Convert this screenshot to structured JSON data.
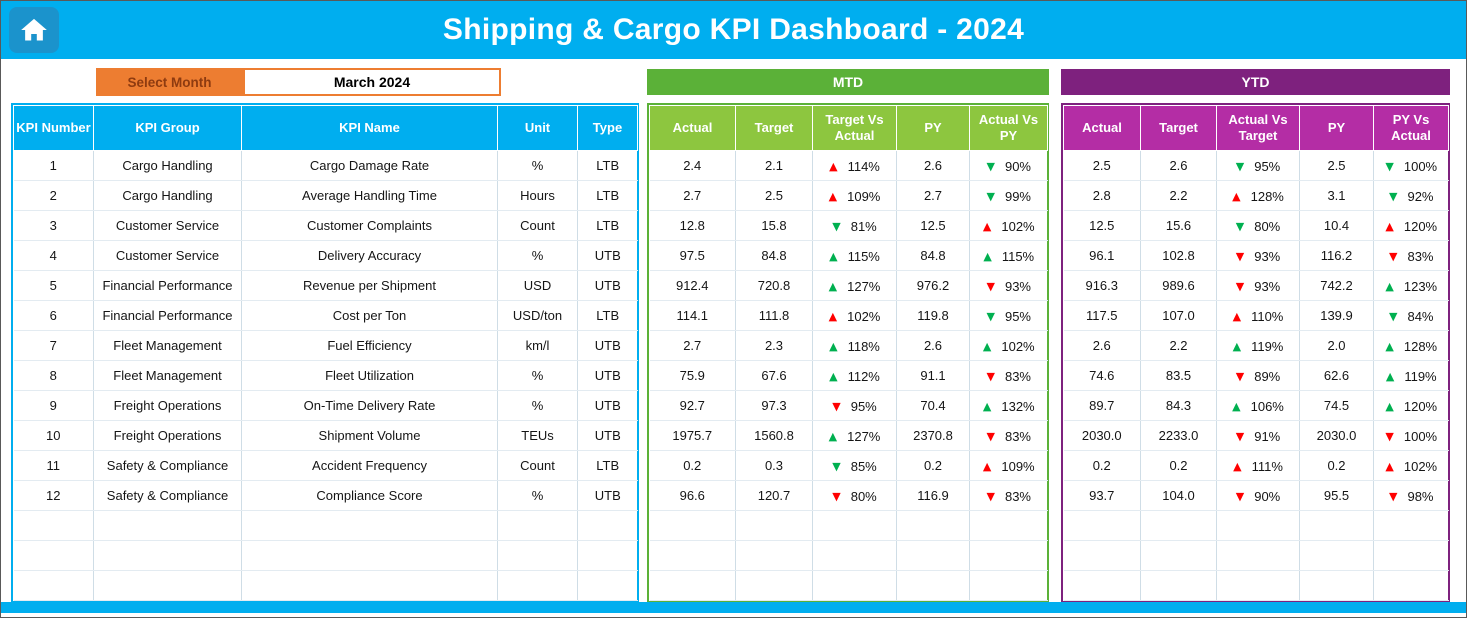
{
  "colors": {
    "cyan": "#00AEEF",
    "cyan_dark": "#1B93CC",
    "orange": "#ED7D31",
    "orange_text": "#8E3B10",
    "green_band": "#5BB138",
    "green_header": "#8DC63F",
    "purple_band": "#7E217E",
    "purple_header": "#B42DA5",
    "arrow_red": "#FF0000",
    "arrow_green": "#00B050"
  },
  "icons": {
    "home": "home-icon",
    "up_arrow": "▲",
    "down_arrow": "▼"
  },
  "header": {
    "title": "Shipping & Cargo KPI Dashboard - 2024"
  },
  "month_selector": {
    "label": "Select Month",
    "value": "March 2024"
  },
  "bands": {
    "mtd": "MTD",
    "ytd": "YTD"
  },
  "table": {
    "kpi_headers": [
      "KPI Number",
      "KPI Group",
      "KPI Name",
      "Unit",
      "Type"
    ],
    "mtd_headers": [
      "Actual",
      "Target",
      "Target Vs Actual",
      "PY",
      "Actual Vs PY"
    ],
    "ytd_headers": [
      "Actual",
      "Target",
      "Actual Vs Target",
      "PY",
      "PY Vs Actual"
    ],
    "empty_rows": 3,
    "rows": [
      {
        "number": "1",
        "group": "Cargo Handling",
        "name": "Cargo Damage Rate",
        "unit": "%",
        "type": "LTB",
        "mtd": {
          "actual": "2.4",
          "target": "2.1",
          "target_vs_actual": {
            "arrow": "up",
            "color": "red",
            "value": "114%"
          },
          "py": "2.6",
          "actual_vs_py": {
            "arrow": "down",
            "color": "green",
            "value": "90%"
          }
        },
        "ytd": {
          "actual": "2.5",
          "target": "2.6",
          "actual_vs_target": {
            "arrow": "down",
            "color": "green",
            "value": "95%"
          },
          "py": "2.5",
          "py_vs_actual": {
            "arrow": "down",
            "color": "green",
            "value": "100%"
          }
        }
      },
      {
        "number": "2",
        "group": "Cargo Handling",
        "name": "Average Handling Time",
        "unit": "Hours",
        "type": "LTB",
        "mtd": {
          "actual": "2.7",
          "target": "2.5",
          "target_vs_actual": {
            "arrow": "up",
            "color": "red",
            "value": "109%"
          },
          "py": "2.7",
          "actual_vs_py": {
            "arrow": "down",
            "color": "green",
            "value": "99%"
          }
        },
        "ytd": {
          "actual": "2.8",
          "target": "2.2",
          "actual_vs_target": {
            "arrow": "up",
            "color": "red",
            "value": "128%"
          },
          "py": "3.1",
          "py_vs_actual": {
            "arrow": "down",
            "color": "green",
            "value": "92%"
          }
        }
      },
      {
        "number": "3",
        "group": "Customer Service",
        "name": "Customer Complaints",
        "unit": "Count",
        "type": "LTB",
        "mtd": {
          "actual": "12.8",
          "target": "15.8",
          "target_vs_actual": {
            "arrow": "down",
            "color": "green",
            "value": "81%"
          },
          "py": "12.5",
          "actual_vs_py": {
            "arrow": "up",
            "color": "red",
            "value": "102%"
          }
        },
        "ytd": {
          "actual": "12.5",
          "target": "15.6",
          "actual_vs_target": {
            "arrow": "down",
            "color": "green",
            "value": "80%"
          },
          "py": "10.4",
          "py_vs_actual": {
            "arrow": "up",
            "color": "red",
            "value": "120%"
          }
        }
      },
      {
        "number": "4",
        "group": "Customer Service",
        "name": "Delivery Accuracy",
        "unit": "%",
        "type": "UTB",
        "mtd": {
          "actual": "97.5",
          "target": "84.8",
          "target_vs_actual": {
            "arrow": "up",
            "color": "green",
            "value": "115%"
          },
          "py": "84.8",
          "actual_vs_py": {
            "arrow": "up",
            "color": "green",
            "value": "115%"
          }
        },
        "ytd": {
          "actual": "96.1",
          "target": "102.8",
          "actual_vs_target": {
            "arrow": "down",
            "color": "red",
            "value": "93%"
          },
          "py": "116.2",
          "py_vs_actual": {
            "arrow": "down",
            "color": "red",
            "value": "83%"
          }
        }
      },
      {
        "number": "5",
        "group": "Financial Performance",
        "name": "Revenue per Shipment",
        "unit": "USD",
        "type": "UTB",
        "mtd": {
          "actual": "912.4",
          "target": "720.8",
          "target_vs_actual": {
            "arrow": "up",
            "color": "green",
            "value": "127%"
          },
          "py": "976.2",
          "actual_vs_py": {
            "arrow": "down",
            "color": "red",
            "value": "93%"
          }
        },
        "ytd": {
          "actual": "916.3",
          "target": "989.6",
          "actual_vs_target": {
            "arrow": "down",
            "color": "red",
            "value": "93%"
          },
          "py": "742.2",
          "py_vs_actual": {
            "arrow": "up",
            "color": "green",
            "value": "123%"
          }
        }
      },
      {
        "number": "6",
        "group": "Financial Performance",
        "name": "Cost per Ton",
        "unit": "USD/ton",
        "type": "LTB",
        "mtd": {
          "actual": "114.1",
          "target": "111.8",
          "target_vs_actual": {
            "arrow": "up",
            "color": "red",
            "value": "102%"
          },
          "py": "119.8",
          "actual_vs_py": {
            "arrow": "down",
            "color": "green",
            "value": "95%"
          }
        },
        "ytd": {
          "actual": "117.5",
          "target": "107.0",
          "actual_vs_target": {
            "arrow": "up",
            "color": "red",
            "value": "110%"
          },
          "py": "139.9",
          "py_vs_actual": {
            "arrow": "down",
            "color": "green",
            "value": "84%"
          }
        }
      },
      {
        "number": "7",
        "group": "Fleet Management",
        "name": "Fuel Efficiency",
        "unit": "km/l",
        "type": "UTB",
        "mtd": {
          "actual": "2.7",
          "target": "2.3",
          "target_vs_actual": {
            "arrow": "up",
            "color": "green",
            "value": "118%"
          },
          "py": "2.6",
          "actual_vs_py": {
            "arrow": "up",
            "color": "green",
            "value": "102%"
          }
        },
        "ytd": {
          "actual": "2.6",
          "target": "2.2",
          "actual_vs_target": {
            "arrow": "up",
            "color": "green",
            "value": "119%"
          },
          "py": "2.0",
          "py_vs_actual": {
            "arrow": "up",
            "color": "green",
            "value": "128%"
          }
        }
      },
      {
        "number": "8",
        "group": "Fleet Management",
        "name": "Fleet Utilization",
        "unit": "%",
        "type": "UTB",
        "mtd": {
          "actual": "75.9",
          "target": "67.6",
          "target_vs_actual": {
            "arrow": "up",
            "color": "green",
            "value": "112%"
          },
          "py": "91.1",
          "actual_vs_py": {
            "arrow": "down",
            "color": "red",
            "value": "83%"
          }
        },
        "ytd": {
          "actual": "74.6",
          "target": "83.5",
          "actual_vs_target": {
            "arrow": "down",
            "color": "red",
            "value": "89%"
          },
          "py": "62.6",
          "py_vs_actual": {
            "arrow": "up",
            "color": "green",
            "value": "119%"
          }
        }
      },
      {
        "number": "9",
        "group": "Freight Operations",
        "name": "On-Time Delivery Rate",
        "unit": "%",
        "type": "UTB",
        "mtd": {
          "actual": "92.7",
          "target": "97.3",
          "target_vs_actual": {
            "arrow": "down",
            "color": "red",
            "value": "95%"
          },
          "py": "70.4",
          "actual_vs_py": {
            "arrow": "up",
            "color": "green",
            "value": "132%"
          }
        },
        "ytd": {
          "actual": "89.7",
          "target": "84.3",
          "actual_vs_target": {
            "arrow": "up",
            "color": "green",
            "value": "106%"
          },
          "py": "74.5",
          "py_vs_actual": {
            "arrow": "up",
            "color": "green",
            "value": "120%"
          }
        }
      },
      {
        "number": "10",
        "group": "Freight Operations",
        "name": "Shipment Volume",
        "unit": "TEUs",
        "type": "UTB",
        "mtd": {
          "actual": "1975.7",
          "target": "1560.8",
          "target_vs_actual": {
            "arrow": "up",
            "color": "green",
            "value": "127%"
          },
          "py": "2370.8",
          "actual_vs_py": {
            "arrow": "down",
            "color": "red",
            "value": "83%"
          }
        },
        "ytd": {
          "actual": "2030.0",
          "target": "2233.0",
          "actual_vs_target": {
            "arrow": "down",
            "color": "red",
            "value": "91%"
          },
          "py": "2030.0",
          "py_vs_actual": {
            "arrow": "down",
            "color": "red",
            "value": "100%"
          }
        }
      },
      {
        "number": "11",
        "group": "Safety & Compliance",
        "name": "Accident Frequency",
        "unit": "Count",
        "type": "LTB",
        "mtd": {
          "actual": "0.2",
          "target": "0.3",
          "target_vs_actual": {
            "arrow": "down",
            "color": "green",
            "value": "85%"
          },
          "py": "0.2",
          "actual_vs_py": {
            "arrow": "up",
            "color": "red",
            "value": "109%"
          }
        },
        "ytd": {
          "actual": "0.2",
          "target": "0.2",
          "actual_vs_target": {
            "arrow": "up",
            "color": "red",
            "value": "111%"
          },
          "py": "0.2",
          "py_vs_actual": {
            "arrow": "up",
            "color": "red",
            "value": "102%"
          }
        }
      },
      {
        "number": "12",
        "group": "Safety & Compliance",
        "name": "Compliance Score",
        "unit": "%",
        "type": "UTB",
        "mtd": {
          "actual": "96.6",
          "target": "120.7",
          "target_vs_actual": {
            "arrow": "down",
            "color": "red",
            "value": "80%"
          },
          "py": "116.9",
          "actual_vs_py": {
            "arrow": "down",
            "color": "red",
            "value": "83%"
          }
        },
        "ytd": {
          "actual": "93.7",
          "target": "104.0",
          "actual_vs_target": {
            "arrow": "down",
            "color": "red",
            "value": "90%"
          },
          "py": "95.5",
          "py_vs_actual": {
            "arrow": "down",
            "color": "red",
            "value": "98%"
          }
        }
      }
    ]
  }
}
